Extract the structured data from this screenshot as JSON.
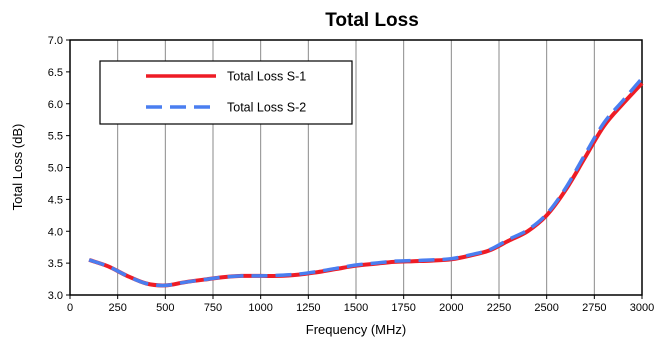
{
  "chart_data": {
    "type": "line",
    "title": "Total Loss",
    "xlabel": "Frequency (MHz)",
    "ylabel": "Total Loss (dB)",
    "xlim": [
      0,
      3000
    ],
    "ylim": [
      3.0,
      7.0
    ],
    "xticks": [
      0,
      250,
      500,
      750,
      1000,
      1250,
      1500,
      1750,
      2000,
      2250,
      2500,
      2750,
      3000
    ],
    "yticks": [
      3.0,
      3.5,
      4.0,
      4.5,
      5.0,
      5.5,
      6.0,
      6.5,
      7.0
    ],
    "x_grid": true,
    "y_grid": false,
    "legend_position": "top-left",
    "series": [
      {
        "name": "Total Loss S-1",
        "color": "#ee1c25",
        "style": "solid",
        "x": [
          100,
          200,
          300,
          400,
          500,
          600,
          700,
          800,
          900,
          1000,
          1100,
          1200,
          1300,
          1400,
          1500,
          1600,
          1700,
          1800,
          1900,
          2000,
          2100,
          2200,
          2300,
          2400,
          2500,
          2600,
          2700,
          2800,
          2900,
          3000
        ],
        "y": [
          3.55,
          3.45,
          3.3,
          3.18,
          3.15,
          3.2,
          3.24,
          3.28,
          3.3,
          3.3,
          3.3,
          3.32,
          3.36,
          3.41,
          3.46,
          3.49,
          3.52,
          3.53,
          3.54,
          3.56,
          3.62,
          3.7,
          3.85,
          4.0,
          4.25,
          4.65,
          5.15,
          5.65,
          6.0,
          6.32
        ]
      },
      {
        "name": "Total Loss S-2",
        "color": "#4a7ef0",
        "style": "dashed",
        "x": [
          100,
          200,
          300,
          400,
          500,
          600,
          700,
          800,
          900,
          1000,
          1100,
          1200,
          1300,
          1400,
          1500,
          1600,
          1700,
          1800,
          1900,
          2000,
          2100,
          2200,
          2300,
          2400,
          2500,
          2600,
          2700,
          2800,
          2900,
          3000
        ],
        "y": [
          3.55,
          3.45,
          3.3,
          3.18,
          3.15,
          3.2,
          3.24,
          3.28,
          3.3,
          3.3,
          3.31,
          3.33,
          3.37,
          3.42,
          3.47,
          3.5,
          3.53,
          3.54,
          3.55,
          3.57,
          3.63,
          3.71,
          3.87,
          4.02,
          4.27,
          4.68,
          5.2,
          5.7,
          6.05,
          6.4
        ]
      }
    ]
  }
}
